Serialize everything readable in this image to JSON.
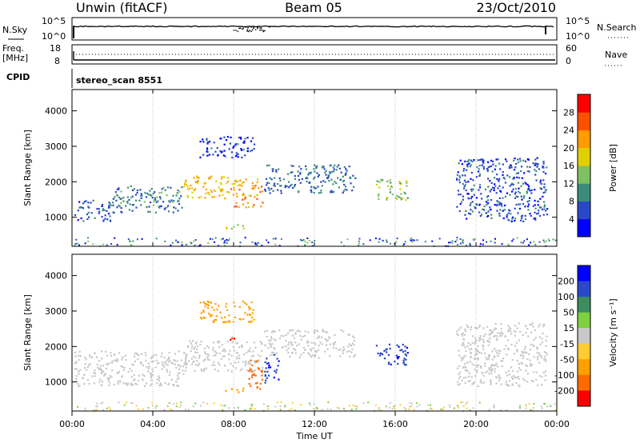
{
  "header": {
    "station": "Unwin (fitACF)",
    "beam": "Beam 05",
    "date": "23/Oct/2010"
  },
  "params": {
    "nsky_label": "N.Sky",
    "nsky_top": "10^5",
    "nsky_bottom": "10^0",
    "nsearch_label": "N.Search",
    "nsearch_top": "10^5",
    "nsearch_bottom": "10^0",
    "freq_label": "Freq.",
    "freq_unit": "[MHz]",
    "freq_top": "18",
    "freq_bottom": "8",
    "nave_label": "Nave",
    "nave_top": "60",
    "nave_bottom": "0",
    "cpid_label": "CPID",
    "cpid_value": "stereo_scan 8551"
  },
  "colors": {
    "power": [
      "#0000ff",
      "#2a48c8",
      "#3c8c7c",
      "#7fc060",
      "#e0d000",
      "#ff9c00",
      "#ff5000",
      "#ff0000"
    ],
    "velocity": [
      "#ff0000",
      "#ff6a00",
      "#ffa000",
      "#ffcc33",
      "#c8c8c8",
      "#7fd040",
      "#3c8c60",
      "#2a48c8",
      "#0000ff"
    ]
  },
  "chart_data": [
    {
      "type": "heatmap",
      "name": "Power",
      "xlabel": "",
      "ylabel": "Slant Range [km]",
      "x_ticks": [
        "00:00",
        "04:00",
        "08:00",
        "12:00",
        "16:00",
        "20:00",
        "00:00"
      ],
      "xlim_hours": [
        0,
        24
      ],
      "y_ticks": [
        1000,
        2000,
        3000,
        4000
      ],
      "ylim": [
        180,
        4600
      ],
      "colorbar": {
        "label": "Power [dB]",
        "ticks": [
          4,
          8,
          12,
          16,
          20,
          24,
          28
        ],
        "range": [
          0,
          32
        ]
      },
      "regions": [
        {
          "t": [
            0.1,
            2.0
          ],
          "r": [
            900,
            1500
          ],
          "level": 6
        },
        {
          "t": [
            2.0,
            5.5
          ],
          "r": [
            1150,
            1900
          ],
          "level": 9
        },
        {
          "t": [
            5.5,
            7.8
          ],
          "r": [
            1550,
            2200
          ],
          "level": 20
        },
        {
          "t": [
            7.8,
            9.4
          ],
          "r": [
            1300,
            2100
          ],
          "level": 22
        },
        {
          "t": [
            6.3,
            9.0
          ],
          "r": [
            2700,
            3300
          ],
          "level": 5
        },
        {
          "t": [
            7.5,
            8.6
          ],
          "r": [
            700,
            850
          ],
          "level": 16
        },
        {
          "t": [
            9.5,
            14.0
          ],
          "r": [
            1700,
            2500
          ],
          "level": 8
        },
        {
          "t": [
            15.0,
            16.6
          ],
          "r": [
            1500,
            2100
          ],
          "level": 14
        },
        {
          "t": [
            19.0,
            23.5
          ],
          "r": [
            900,
            2700
          ],
          "level": 6
        }
      ]
    },
    {
      "type": "heatmap",
      "name": "Velocity",
      "xlabel": "Time UT",
      "ylabel": "Slant Range [km]",
      "x_ticks": [
        "00:00",
        "04:00",
        "08:00",
        "12:00",
        "16:00",
        "20:00",
        "00:00"
      ],
      "xlim_hours": [
        0,
        24
      ],
      "y_ticks": [
        1000,
        2000,
        3000,
        4000
      ],
      "ylim": [
        180,
        4600
      ],
      "colorbar": {
        "label": "Velocity [m s⁻¹]",
        "ticks": [
          200,
          100,
          50,
          15,
          -15,
          -50,
          -100,
          -200
        ]
      },
      "regions": [
        {
          "t": [
            0.1,
            5.5
          ],
          "r": [
            900,
            1900
          ],
          "vel": 0
        },
        {
          "t": [
            5.5,
            9.4
          ],
          "r": [
            1300,
            2200
          ],
          "vel": 0
        },
        {
          "t": [
            8.7,
            9.4
          ],
          "r": [
            800,
            1700
          ],
          "vel": -180
        },
        {
          "t": [
            7.5,
            8.6
          ],
          "r": [
            700,
            850
          ],
          "vel": -70
        },
        {
          "t": [
            7.7,
            8.0
          ],
          "r": [
            2000,
            2300
          ],
          "vel": -190
        },
        {
          "t": [
            9.5,
            10.2
          ],
          "r": [
            1000,
            1800
          ],
          "vel": 190
        },
        {
          "t": [
            9.5,
            14.0
          ],
          "r": [
            1700,
            2500
          ],
          "vel": 0
        },
        {
          "t": [
            6.3,
            9.0
          ],
          "r": [
            2700,
            3300
          ],
          "vel": -80
        },
        {
          "t": [
            15.0,
            16.6
          ],
          "r": [
            1500,
            2100
          ],
          "vel": 190
        },
        {
          "t": [
            19.0,
            23.5
          ],
          "r": [
            900,
            2700
          ],
          "vel": 0
        }
      ]
    }
  ]
}
